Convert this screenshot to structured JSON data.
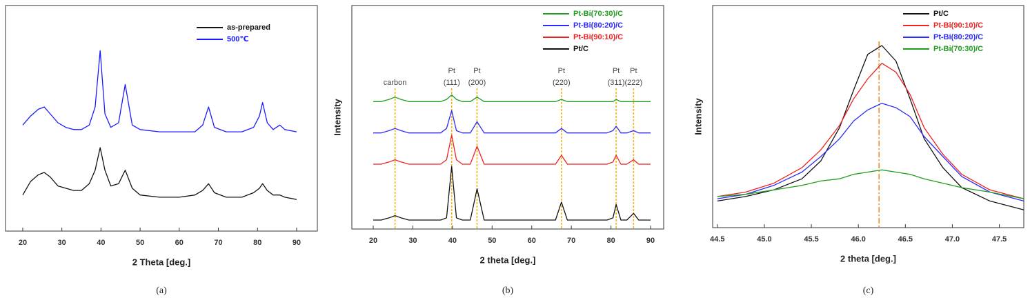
{
  "chart_data": [
    {
      "type": "line",
      "caption": "(a)",
      "xlabel": "2 Theta [deg.]",
      "xlim": [
        15.6,
        95.3
      ],
      "ylim": [
        0,
        100
      ],
      "xticks": [
        20,
        30,
        40,
        50,
        60,
        70,
        80,
        90
      ],
      "legend": "top-right",
      "x": [
        20,
        22,
        24,
        25.5,
        27,
        29,
        31,
        33,
        35,
        37,
        38.5,
        39.8,
        41,
        42.5,
        44.5,
        46.2,
        48,
        50,
        55,
        60,
        64,
        66,
        67.5,
        69,
        72,
        76,
        79,
        80.5,
        81.3,
        82.5,
        84,
        85.7,
        87,
        90
      ],
      "series": [
        {
          "name": "as-prepared",
          "color": "#111111",
          "values": [
            16,
            22,
            25,
            26,
            24,
            20,
            19,
            18,
            18,
            21,
            27,
            37,
            27,
            20,
            21,
            27,
            19,
            16,
            15,
            15,
            16,
            18,
            21,
            17,
            15,
            15,
            17,
            19,
            21,
            18,
            16,
            16,
            15,
            14
          ]
        },
        {
          "name": "500℃",
          "color": "#1a1aff",
          "values": [
            47,
            51,
            54,
            55,
            52,
            48,
            46,
            45,
            45,
            47,
            55,
            80,
            52,
            46,
            48,
            65,
            47,
            45,
            44,
            44,
            44,
            47,
            55,
            46,
            44,
            44,
            46,
            51,
            57,
            48,
            45,
            47,
            45,
            44
          ]
        }
      ]
    },
    {
      "type": "line",
      "caption": "(b)",
      "xlabel": "2 theta [deg.]",
      "ylabel": "Intensity",
      "xlim": [
        14.6,
        93.3
      ],
      "ylim": [
        0,
        100
      ],
      "xticks": [
        20,
        30,
        40,
        50,
        60,
        70,
        80,
        90
      ],
      "legend": "top-right",
      "x": [
        20,
        22,
        24,
        25.5,
        27,
        29,
        31,
        33,
        35,
        37,
        38.5,
        39.8,
        41,
        42.5,
        44.5,
        46.2,
        48,
        50,
        55,
        60,
        64,
        66,
        67.5,
        69,
        72,
        76,
        79,
        80.5,
        81.3,
        82.5,
        84,
        85.7,
        87,
        90
      ],
      "series": [
        {
          "name": "Pt-Bi(70:30)/C",
          "color": "#1e9e1e",
          "values": [
            57,
            57,
            58,
            59,
            58,
            57,
            57,
            57,
            57,
            57,
            58,
            60,
            58,
            57,
            57,
            59,
            57,
            57,
            57,
            57,
            57,
            57,
            58,
            57,
            57,
            57,
            57,
            57,
            58,
            57,
            57,
            57,
            57,
            57
          ]
        },
        {
          "name": "Pt-Bi(80:20)/C",
          "color": "#2a2aff",
          "values": [
            43,
            43,
            44,
            45,
            44,
            43,
            43,
            43,
            43,
            43,
            45,
            53,
            44,
            43,
            43,
            48,
            43,
            43,
            43,
            43,
            43,
            43,
            45,
            43,
            43,
            43,
            43,
            44,
            46,
            43,
            43,
            44,
            43,
            43
          ]
        },
        {
          "name": "Pt-Bi(90:10)/C",
          "color": "#ee2222",
          "values": [
            29,
            29,
            30,
            31,
            30,
            29,
            29,
            29,
            29,
            29,
            31,
            42,
            31,
            29,
            29,
            37,
            29,
            29,
            29,
            29,
            29,
            29,
            33,
            29,
            29,
            29,
            29,
            30,
            33,
            29,
            29,
            31,
            29,
            29
          ]
        },
        {
          "name": "Pt/C",
          "color": "#111111",
          "values": [
            4,
            4,
            5,
            6,
            5,
            4,
            4,
            4,
            4,
            4,
            5,
            28,
            5,
            4,
            4,
            18,
            4,
            4,
            4,
            4,
            4,
            4,
            12,
            4,
            4,
            4,
            4,
            5,
            11,
            4,
            4,
            7,
            4,
            4
          ]
        }
      ],
      "ref_lines": [
        25.5,
        39.8,
        46.2,
        67.5,
        81.3,
        85.7
      ],
      "ref_style": "dashed",
      "ref_color": "#f5b21c",
      "annotations": [
        {
          "x": 25.5,
          "lines": [
            "carbon"
          ]
        },
        {
          "x": 39.8,
          "lines": [
            "Pt",
            "(111)"
          ]
        },
        {
          "x": 46.2,
          "lines": [
            "Pt",
            "(200)"
          ]
        },
        {
          "x": 67.5,
          "lines": [
            "Pt",
            "(220)"
          ]
        },
        {
          "x": 81.3,
          "lines": [
            "Pt",
            "(311)"
          ]
        },
        {
          "x": 85.7,
          "lines": [
            "Pt",
            "(222)"
          ]
        }
      ]
    },
    {
      "type": "line",
      "caption": "(c)",
      "xlabel": "2 theta [deg.]",
      "ylabel": "Intensity",
      "xlim": [
        44.45,
        47.76
      ],
      "ylim": [
        0,
        100
      ],
      "xticks": [
        44.5,
        {
          "value": 45,
          "label": "45.0"
        },
        45.5,
        {
          "value": 46,
          "label": "46.0"
        },
        46.5,
        {
          "value": 47,
          "label": "47.0"
        },
        47.5
      ],
      "legend": "top-right",
      "x": [
        44.5,
        44.8,
        45.1,
        45.4,
        45.6,
        45.8,
        45.95,
        46.1,
        46.25,
        46.4,
        46.55,
        46.7,
        46.9,
        47.1,
        47.4,
        47.76
      ],
      "series": [
        {
          "name": "Pt/C",
          "color": "#111111",
          "values": [
            12,
            14,
            17,
            22,
            30,
            45,
            62,
            78,
            82,
            75,
            58,
            40,
            27,
            18,
            12,
            8
          ]
        },
        {
          "name": "Pt-Bi(90:10)/C",
          "color": "#ee2222",
          "values": [
            14,
            16,
            20,
            27,
            35,
            46,
            58,
            67,
            74,
            70,
            60,
            45,
            33,
            24,
            17,
            13
          ]
        },
        {
          "name": "Pt-Bi(80:20)/C",
          "color": "#2a2aff",
          "values": [
            13,
            15,
            19,
            25,
            32,
            40,
            48,
            53,
            56,
            54,
            50,
            41,
            32,
            23,
            16,
            12
          ]
        },
        {
          "name": "Pt-Bi(70:30)/C",
          "color": "#1e9e1e",
          "values": [
            14,
            15,
            17,
            19,
            21,
            22,
            24,
            25,
            26,
            25,
            24,
            22,
            20,
            18,
            16,
            13
          ]
        }
      ],
      "ref_lines": [
        46.22
      ],
      "ref_style": "dashdot",
      "ref_color": "#f08c1c"
    }
  ]
}
